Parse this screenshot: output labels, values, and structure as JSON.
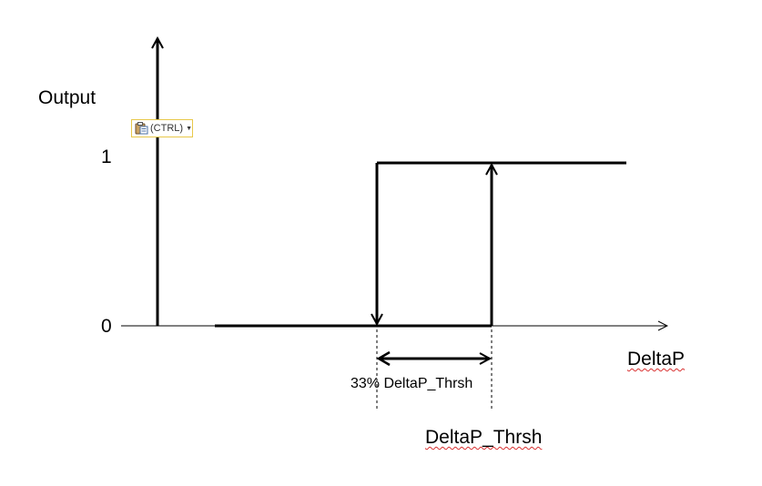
{
  "labels": {
    "y_axis": "Output",
    "y_tick_1": "1",
    "y_tick_0": "0",
    "x_axis": "DeltaP",
    "hysteresis": "33% DeltaP_Thrsh",
    "threshold": "DeltaP_Thrsh"
  },
  "paste_button": {
    "label": "(CTRL)",
    "icon": "clipboard-icon",
    "dropdown_icon": "caret-down-icon"
  },
  "colors": {
    "line": "#000000",
    "axis": "#000000",
    "spellcheck": "#d83030",
    "paste_border": "#e8c84a"
  }
}
